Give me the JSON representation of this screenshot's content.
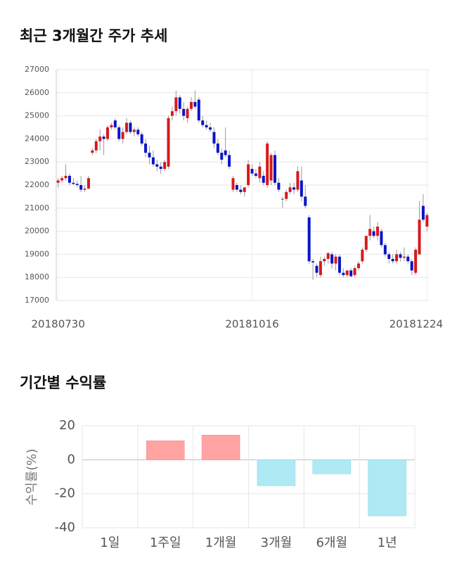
{
  "chart_data": [
    {
      "type": "candlestick",
      "title": "최근 3개월간 주가 추세",
      "categories": [
        "20180730",
        null,
        null,
        null,
        null,
        null,
        null,
        null,
        null,
        null,
        null,
        null,
        null,
        null,
        null,
        null,
        null,
        null,
        null,
        null,
        null,
        null,
        null,
        null,
        null,
        null,
        null,
        null,
        null,
        null,
        null,
        null,
        null,
        null,
        null,
        null,
        null,
        null,
        null,
        null,
        null,
        null,
        null,
        null,
        null,
        null,
        null,
        null,
        null,
        null,
        null,
        "20181016",
        null,
        null,
        null,
        null,
        null,
        null,
        null,
        null,
        null,
        null,
        null,
        null,
        null,
        null,
        null,
        null,
        null,
        null,
        null,
        null,
        null,
        null,
        null,
        null,
        null,
        null,
        null,
        null,
        null,
        null,
        null,
        null,
        null,
        null,
        null,
        null,
        null,
        null,
        null,
        null,
        null,
        null,
        null,
        null,
        null,
        "20181224"
      ],
      "open": [
        22100,
        22200,
        22300,
        22400,
        22100,
        22050,
        22000,
        21800,
        21850,
        23400,
        23500,
        23900,
        24100,
        24000,
        24500,
        24800,
        24500,
        24000,
        24300,
        24700,
        24300,
        24400,
        24200,
        23800,
        23400,
        23200,
        22900,
        22800,
        22700,
        22800,
        25000,
        25200,
        25800,
        25300,
        24900,
        25300,
        25600,
        25700,
        24800,
        24600,
        24500,
        24300,
        23800,
        23400,
        23500,
        23300,
        21800,
        22000,
        21800,
        21700,
        22000,
        22700,
        22500,
        22300,
        22400,
        22000,
        22200,
        23300,
        22100,
        21400,
        21400,
        21700,
        21900,
        21800,
        22200,
        21500,
        20600,
        18700,
        18500,
        18100,
        18700,
        18800,
        19000,
        18600,
        18900,
        18200,
        18100,
        18300,
        18100,
        18400,
        18700,
        19200,
        19800,
        20000,
        19800,
        20000,
        19400,
        19000,
        18800,
        18700,
        19000,
        18850,
        18900,
        18700,
        18200,
        19000,
        21100,
        20200
      ],
      "high": [
        22300,
        22400,
        22900,
        22500,
        22300,
        22200,
        22400,
        22000,
        22400,
        23600,
        24000,
        24400,
        24200,
        24600,
        24700,
        24900,
        24600,
        24500,
        24900,
        24800,
        24500,
        24500,
        24300,
        24000,
        23700,
        23500,
        23100,
        23000,
        23100,
        25000,
        25400,
        26100,
        25900,
        25600,
        25400,
        25800,
        26100,
        25800,
        25000,
        24800,
        24700,
        24500,
        24000,
        23600,
        24500,
        23500,
        22400,
        22100,
        22000,
        21900,
        23100,
        22900,
        22700,
        23000,
        22600,
        23900,
        23400,
        23500,
        22300,
        21500,
        21800,
        22100,
        22100,
        22800,
        22800,
        22000,
        20700,
        18800,
        18600,
        18900,
        18900,
        19100,
        19100,
        19000,
        19000,
        18400,
        18300,
        18400,
        18500,
        18700,
        19300,
        19800,
        20700,
        20200,
        20400,
        20100,
        19500,
        19100,
        19000,
        19200,
        19100,
        19300,
        19000,
        18800,
        19300,
        21300,
        21600,
        20800
      ],
      "low": [
        21900,
        22100,
        22200,
        22000,
        22000,
        21900,
        21700,
        21700,
        21800,
        23300,
        23400,
        23500,
        23300,
        23900,
        24400,
        24400,
        23900,
        23800,
        24200,
        24200,
        24100,
        24100,
        23700,
        23200,
        22900,
        22800,
        22600,
        22500,
        22600,
        22700,
        24800,
        25000,
        25100,
        24800,
        24700,
        25200,
        25300,
        24700,
        24500,
        24400,
        24300,
        23600,
        23300,
        22900,
        23200,
        22700,
        21700,
        21700,
        21600,
        21500,
        21900,
        22400,
        22300,
        22100,
        22000,
        21900,
        22000,
        22000,
        21700,
        21000,
        21300,
        21600,
        21600,
        21700,
        21300,
        21000,
        18600,
        17900,
        18000,
        18000,
        18500,
        18600,
        18400,
        18300,
        18100,
        18000,
        18000,
        18000,
        18000,
        18300,
        18600,
        19100,
        19600,
        19700,
        19600,
        19300,
        18900,
        18600,
        18600,
        18600,
        18700,
        18700,
        18600,
        18100,
        18100,
        19000,
        20400,
        20000
      ],
      "close": [
        22200,
        22300,
        22400,
        22100,
        22050,
        22000,
        21800,
        21850,
        22300,
        23500,
        23900,
        24100,
        24000,
        24500,
        24600,
        24500,
        24000,
        24300,
        24700,
        24300,
        24400,
        24200,
        23800,
        23400,
        23200,
        22900,
        22800,
        22700,
        23000,
        24900,
        25200,
        25800,
        25300,
        25000,
        25300,
        25600,
        25400,
        24800,
        24600,
        24500,
        24400,
        23800,
        23400,
        23100,
        23300,
        22800,
        22300,
        21800,
        21700,
        21900,
        22900,
        22500,
        22400,
        22800,
        22100,
        23800,
        23300,
        22100,
        21800,
        21400,
        21700,
        21900,
        21800,
        22600,
        21500,
        21100,
        18700,
        18650,
        18200,
        18700,
        18800,
        19050,
        18600,
        18900,
        18200,
        18100,
        18300,
        18050,
        18400,
        18600,
        19200,
        19800,
        20100,
        19800,
        20200,
        19400,
        19000,
        18800,
        18700,
        19000,
        18850,
        18900,
        18700,
        18300,
        19200,
        20500,
        20500,
        20700
      ],
      "up_color": "#d7191c",
      "down_color": "#0a14c8",
      "ylim": [
        17000,
        27000
      ],
      "yticks": [
        17000,
        18000,
        19000,
        20000,
        21000,
        22000,
        23000,
        24000,
        25000,
        26000,
        27000
      ],
      "grid": true
    },
    {
      "type": "bar",
      "title": "기간별 수익률",
      "ylabel": "수익률(%)",
      "categories": [
        "1일",
        "1주일",
        "1개월",
        "3개월",
        "6개월",
        "1년"
      ],
      "values": [
        0,
        11.2,
        14.5,
        -15.3,
        -8.3,
        -33
      ],
      "positive_color": "#ffa3a3",
      "negative_color": "#aee9f4",
      "ylim": [
        -40,
        20
      ],
      "yticks": [
        -40,
        -20,
        0,
        20
      ],
      "grid": true
    }
  ]
}
